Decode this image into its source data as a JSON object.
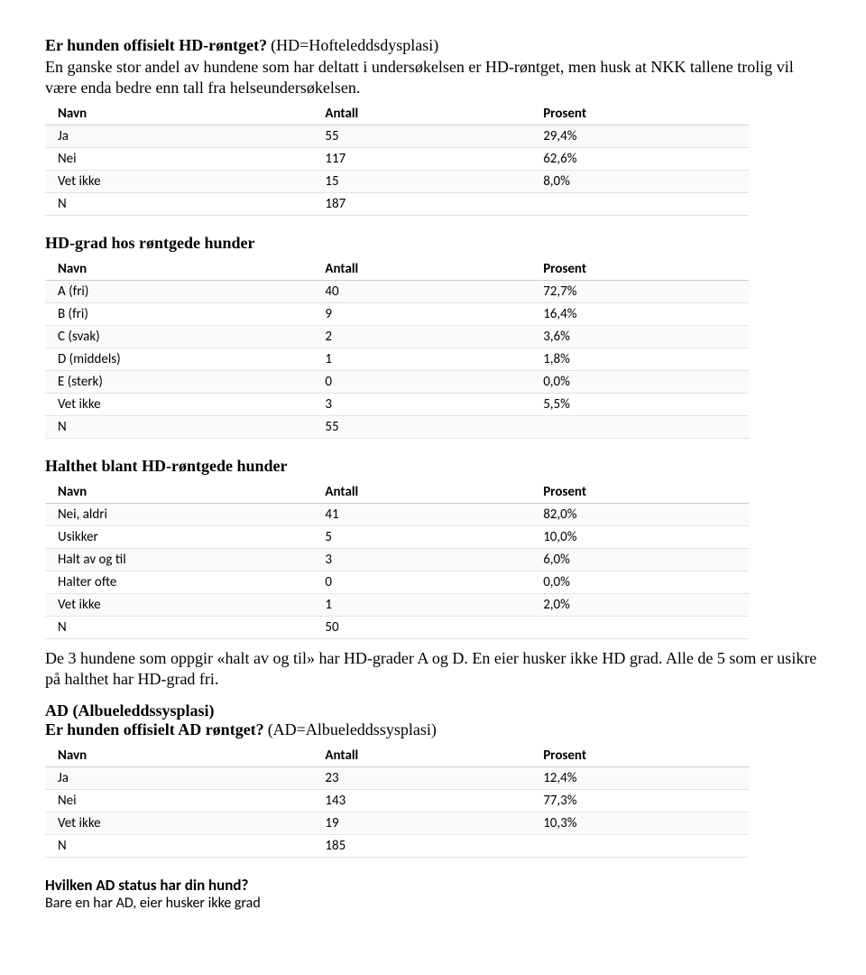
{
  "columns": {
    "name": "Navn",
    "count": "Antall",
    "pct": "Prosent"
  },
  "hd_xray": {
    "title": "Er hunden offisielt HD-røntget?",
    "desc": " (HD=Hofteleddsdysplasi)",
    "para": "En ganske stor andel av hundene som har deltatt i undersøkelsen er HD-røntget, men husk at NKK tallene trolig vil være enda bedre enn tall fra helseundersøkelsen.",
    "rows": [
      {
        "name": "Ja",
        "count": "55",
        "pct": "29,4%"
      },
      {
        "name": "Nei",
        "count": "117",
        "pct": "62,6%"
      },
      {
        "name": "Vet ikke",
        "count": "15",
        "pct": "8,0%"
      },
      {
        "name": "N",
        "count": "187",
        "pct": ""
      }
    ]
  },
  "hd_grade": {
    "title": "HD-grad hos røntgede hunder",
    "rows": [
      {
        "name": "A (fri)",
        "count": "40",
        "pct": "72,7%"
      },
      {
        "name": "B (fri)",
        "count": "9",
        "pct": "16,4%"
      },
      {
        "name": "C (svak)",
        "count": "2",
        "pct": "3,6%"
      },
      {
        "name": "D (middels)",
        "count": "1",
        "pct": "1,8%"
      },
      {
        "name": "E (sterk)",
        "count": "0",
        "pct": "0,0%"
      },
      {
        "name": "Vet ikke",
        "count": "3",
        "pct": "5,5%"
      },
      {
        "name": "N",
        "count": "55",
        "pct": ""
      }
    ]
  },
  "lameness": {
    "title": "Halthet blant HD-røntgede hunder",
    "rows": [
      {
        "name": "Nei, aldri",
        "count": "41",
        "pct": "82,0%"
      },
      {
        "name": "Usikker",
        "count": "5",
        "pct": "10,0%"
      },
      {
        "name": "Halt av og til",
        "count": "3",
        "pct": "6,0%"
      },
      {
        "name": "Halter ofte",
        "count": "0",
        "pct": "0,0%"
      },
      {
        "name": "Vet ikke",
        "count": "1",
        "pct": "2,0%"
      },
      {
        "name": "N",
        "count": "50",
        "pct": ""
      }
    ],
    "note": "De 3 hundene som oppgir «halt av og til» har HD-grader A og D. En eier husker ikke HD grad. Alle de 5 som er usikre på halthet har HD-grad fri."
  },
  "ad": {
    "heading": "AD (Albueleddssysplasi)",
    "title": "Er hunden offisielt AD røntget?",
    "desc": " (AD=Albueleddssysplasi)",
    "rows": [
      {
        "name": "Ja",
        "count": "23",
        "pct": "12,4%"
      },
      {
        "name": "Nei",
        "count": "143",
        "pct": "77,3%"
      },
      {
        "name": "Vet ikke",
        "count": "19",
        "pct": "10,3%"
      },
      {
        "name": "N",
        "count": "185",
        "pct": ""
      }
    ]
  },
  "ad_status": {
    "title": "Hvilken AD status har din hund?",
    "note": "Bare en har AD, eier husker ikke grad"
  }
}
